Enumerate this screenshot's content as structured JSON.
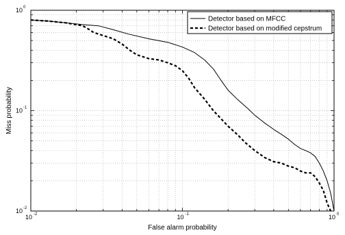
{
  "chart_data": {
    "type": "line",
    "title": "",
    "xlabel": "False alarm probability",
    "ylabel": "Miss probability",
    "xscale": "log",
    "yscale": "log",
    "xlim": [
      0.01,
      1
    ],
    "ylim": [
      0.01,
      1
    ],
    "grid": true,
    "legend_position": "top-right",
    "x_ticks": [
      {
        "base": "10",
        "exp": "-2"
      },
      {
        "base": "10",
        "exp": "-1"
      },
      {
        "base": "10",
        "exp": "0"
      }
    ],
    "y_ticks": [
      {
        "base": "10",
        "exp": "-2"
      },
      {
        "base": "10",
        "exp": "-1"
      },
      {
        "base": "10",
        "exp": "0"
      }
    ],
    "series": [
      {
        "name": "Detector based on MFCC",
        "style": "solid",
        "x": [
          0.01,
          0.013,
          0.017,
          0.022,
          0.028,
          0.035,
          0.044,
          0.06,
          0.08,
          0.1,
          0.12,
          0.14,
          0.16,
          0.18,
          0.2,
          0.23,
          0.27,
          0.3,
          0.35,
          0.4,
          0.45,
          0.5,
          0.55,
          0.6,
          0.65,
          0.7,
          0.75,
          0.8,
          0.85,
          0.9,
          0.95,
          1.0
        ],
        "y": [
          0.8,
          0.78,
          0.75,
          0.72,
          0.7,
          0.64,
          0.58,
          0.52,
          0.48,
          0.43,
          0.38,
          0.32,
          0.26,
          0.2,
          0.16,
          0.13,
          0.105,
          0.09,
          0.075,
          0.065,
          0.058,
          0.052,
          0.046,
          0.042,
          0.04,
          0.038,
          0.035,
          0.03,
          0.025,
          0.02,
          0.015,
          0.01
        ]
      },
      {
        "name": "Detector based on modified cepstrum",
        "style": "dashed",
        "x": [
          0.01,
          0.013,
          0.017,
          0.022,
          0.024,
          0.026,
          0.03,
          0.035,
          0.04,
          0.045,
          0.05,
          0.06,
          0.07,
          0.08,
          0.09,
          0.1,
          0.11,
          0.12,
          0.14,
          0.16,
          0.18,
          0.2,
          0.23,
          0.26,
          0.3,
          0.35,
          0.4,
          0.45,
          0.5,
          0.55,
          0.6,
          0.65,
          0.7,
          0.75,
          0.8,
          0.85,
          0.9,
          0.95
        ],
        "y": [
          0.8,
          0.78,
          0.75,
          0.7,
          0.65,
          0.6,
          0.56,
          0.52,
          0.46,
          0.4,
          0.36,
          0.33,
          0.32,
          0.3,
          0.28,
          0.25,
          0.21,
          0.17,
          0.13,
          0.1,
          0.083,
          0.07,
          0.058,
          0.048,
          0.04,
          0.034,
          0.031,
          0.03,
          0.028,
          0.027,
          0.025,
          0.024,
          0.024,
          0.022,
          0.019,
          0.016,
          0.012,
          0.01
        ]
      }
    ]
  }
}
